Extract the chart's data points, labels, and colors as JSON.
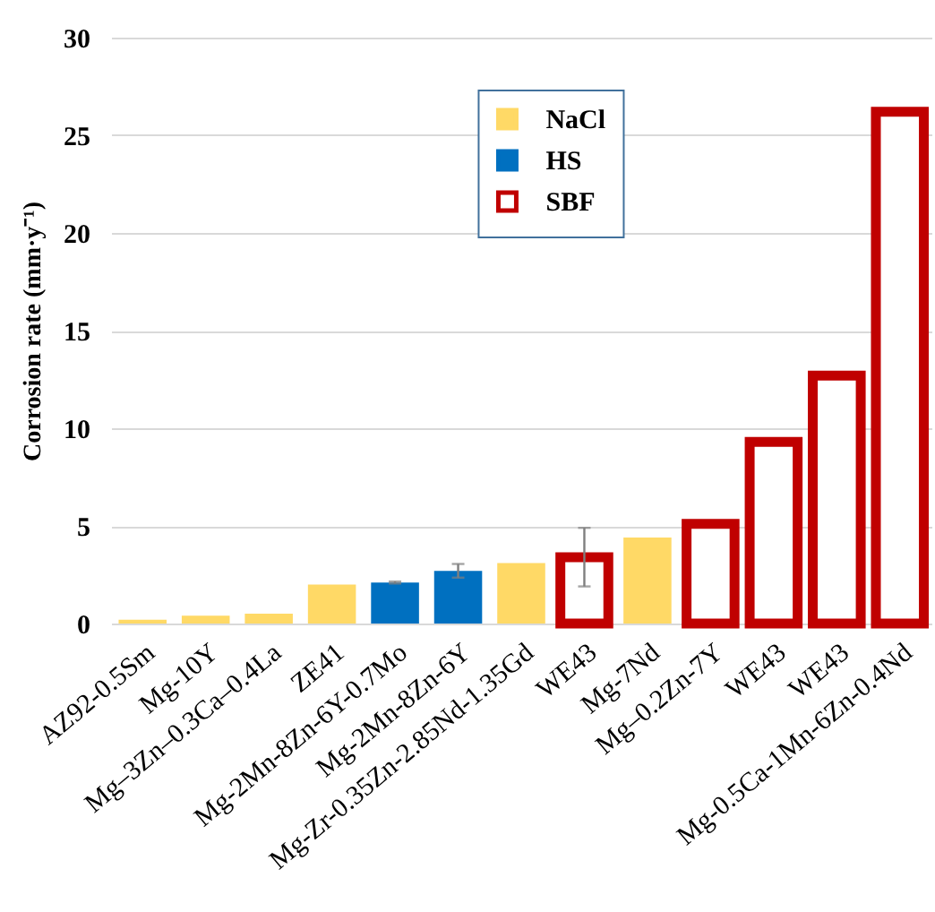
{
  "chart_data": {
    "type": "bar",
    "ylabel": "Corrosion rate (mm·y⁻¹)",
    "categories": [
      "AZ92-0.5Sm",
      "Mg-10Y",
      "Mg–3Zn–0.3Ca–0.4La",
      "ZE41",
      "Mg-2Mn-8Zn-6Y-0.7Mo",
      "Mg-2Mn-8Zn-6Y",
      "Mg-Zr-0.35Zn-2.85Nd-1.35Gd",
      "WE43",
      "Mg-7Nd",
      "Mg–0.2Zn-7Y",
      "WE43",
      "WE43",
      "Mg-0.5Ca-1Mn-6Zn-0.4Nd"
    ],
    "stacked": true,
    "series": [
      {
        "name": "NaCl",
        "color": "#ffd966",
        "values": [
          0.2,
          0.4,
          0.5,
          2.0,
          null,
          null,
          3.1,
          null,
          4.4,
          null,
          null,
          null,
          null
        ]
      },
      {
        "name": "HS",
        "color": "#0070c0",
        "values": [
          null,
          null,
          null,
          null,
          2.1,
          2.7,
          null,
          null,
          null,
          null,
          null,
          null,
          null
        ],
        "errors": [
          null,
          null,
          null,
          null,
          0.05,
          0.35,
          null,
          null,
          null,
          null,
          null,
          null,
          null
        ]
      },
      {
        "name": "SBF",
        "color": "#c00000",
        "line_style": "solid",
        "values": [
          null,
          null,
          null,
          null,
          null,
          null,
          null,
          3.4,
          null,
          5.1,
          9.3,
          12.7,
          26.2
        ],
        "errors": [
          null,
          null,
          null,
          null,
          null,
          null,
          null,
          1.5,
          null,
          null,
          null,
          null,
          null
        ]
      }
    ],
    "ylim": [
      0,
      30
    ],
    "yticks": [
      0,
      5,
      10,
      15,
      20,
      25,
      30
    ],
    "grid": "y",
    "legend": "top"
  }
}
